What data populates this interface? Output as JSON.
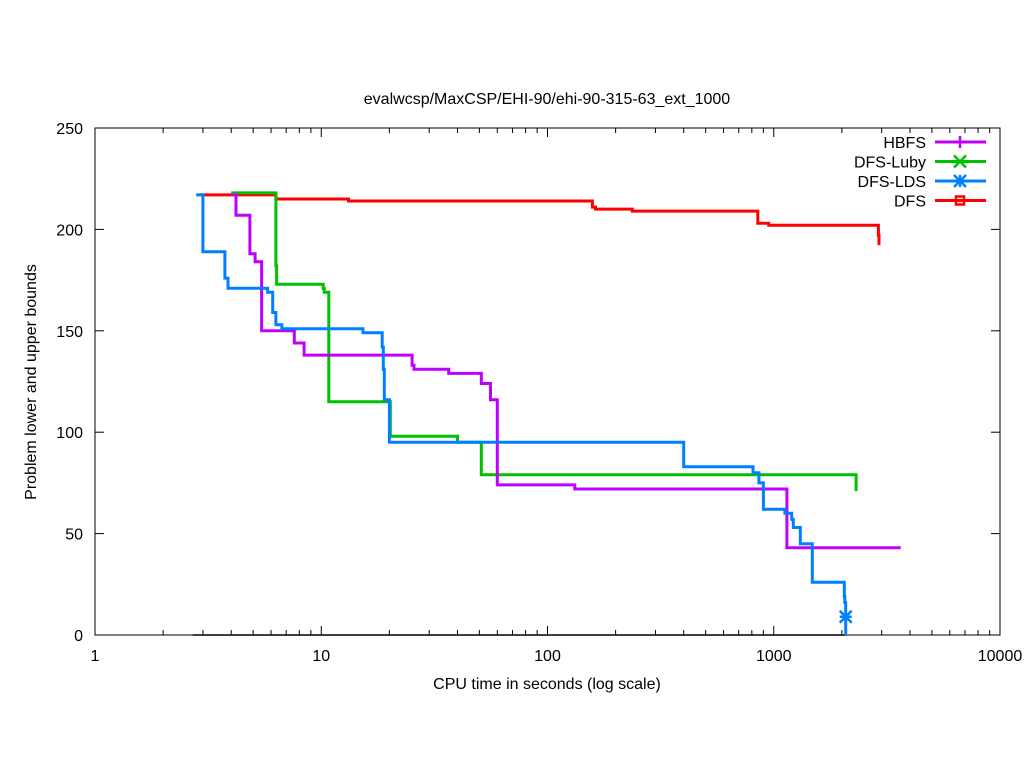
{
  "chart_data": {
    "type": "line",
    "title": "evalwcsp/MaxCSP/EHI-90/ehi-90-315-63_ext_1000",
    "xlabel": "CPU time in seconds (log scale)",
    "ylabel": "Problem lower and upper bounds",
    "xscale": "log",
    "xlim": [
      1,
      10000
    ],
    "ylim": [
      0,
      250
    ],
    "xticks": [
      1,
      10,
      100,
      1000,
      10000
    ],
    "xtick_labels": [
      "1",
      "10",
      "100",
      "1000",
      "10000"
    ],
    "yticks": [
      0,
      50,
      100,
      150,
      200,
      250
    ],
    "ytick_labels": [
      "0",
      "50",
      "100",
      "150",
      "200",
      "250"
    ],
    "grid": false,
    "legend_position": "top-right",
    "series": [
      {
        "name": "HBFS",
        "color": "#c000ff",
        "marker": "plus",
        "steps": [
          [
            4.0,
            217
          ],
          [
            4.2,
            207
          ],
          [
            4.84,
            188
          ],
          [
            5.1,
            184
          ],
          [
            5.45,
            150
          ],
          [
            7.6,
            144
          ],
          [
            8.4,
            138
          ],
          [
            25.2,
            133
          ],
          [
            25.7,
            131
          ],
          [
            36.6,
            129
          ],
          [
            51,
            124
          ],
          [
            56,
            116
          ],
          [
            60,
            74
          ],
          [
            132,
            72
          ],
          [
            1143,
            43
          ],
          [
            3640,
            43
          ]
        ]
      },
      {
        "name": "DFS-Luby",
        "color": "#00c000",
        "marker": "cross",
        "steps": [
          [
            4.0,
            218
          ],
          [
            6.3,
            182
          ],
          [
            6.35,
            173
          ],
          [
            10.2,
            171
          ],
          [
            10.3,
            169
          ],
          [
            10.8,
            115
          ],
          [
            20.2,
            98
          ],
          [
            40,
            95
          ],
          [
            51,
            79
          ],
          [
            2313,
            71
          ]
        ]
      },
      {
        "name": "DFS-LDS",
        "color": "#0080ff",
        "marker": "star",
        "steps": [
          [
            2.8,
            217
          ],
          [
            3.0,
            189
          ],
          [
            3.75,
            176
          ],
          [
            3.87,
            171
          ],
          [
            5.8,
            169
          ],
          [
            6.1,
            159
          ],
          [
            6.3,
            153
          ],
          [
            6.7,
            151
          ],
          [
            15.3,
            149
          ],
          [
            18.6,
            142
          ],
          [
            18.8,
            131
          ],
          [
            19.0,
            116
          ],
          [
            20,
            95
          ],
          [
            400,
            83
          ],
          [
            810,
            80
          ],
          [
            860,
            75
          ],
          [
            900,
            62
          ],
          [
            1120,
            60
          ],
          [
            1200,
            57
          ],
          [
            1220,
            53
          ],
          [
            1310,
            45
          ],
          [
            1480,
            26
          ],
          [
            2050,
            19
          ],
          [
            2060,
            16
          ],
          [
            2080,
            0
          ]
        ],
        "final_marker": [
          2080,
          9
        ]
      },
      {
        "name": "DFS",
        "color": "#ff0000",
        "marker": "square",
        "steps": [
          [
            2.9,
            217
          ],
          [
            6.3,
            215
          ],
          [
            13.2,
            214
          ],
          [
            158,
            211
          ],
          [
            163,
            210
          ],
          [
            237,
            209
          ],
          [
            850,
            203
          ],
          [
            950,
            202
          ],
          [
            2900,
            197
          ],
          [
            2920,
            193
          ],
          [
            2960,
            193
          ]
        ]
      }
    ],
    "lower_bound": {
      "color": "#000000",
      "steps": [
        [
          2.7,
          0
        ],
        [
          2080,
          0
        ]
      ]
    }
  }
}
